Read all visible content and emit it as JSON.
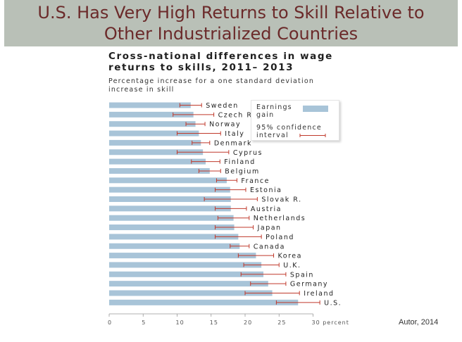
{
  "slide": {
    "title": "U.S. Has Very High Returns to Skill Relative to Other Industrialized Countries",
    "credit": "Autor, 2014"
  },
  "colors": {
    "title_band": "#b9c0b7",
    "title_text": "#6b2a2a",
    "bar": "#a8c4d8",
    "ci": "#c0392b"
  },
  "chart_data": {
    "type": "bar",
    "orientation": "horizontal",
    "title": "Cross-national differences in wage returns to skills, 2011– 2013",
    "subtitle": "Percentage increase for a one standard deviation increase in skill",
    "xlabel": "",
    "ylabel": "",
    "xlim": [
      0,
      30
    ],
    "x_ticks": [
      0,
      5,
      10,
      15,
      20,
      25,
      30
    ],
    "x_tick_labels": [
      "0",
      "5",
      "10",
      "15",
      "20",
      "25",
      "30 percent"
    ],
    "grid": false,
    "legend_position": "top-right",
    "legend": {
      "bar_label": "Earnings gain",
      "ci_label": "95% confidence interval"
    },
    "categories": [
      "Sweden",
      "Czech R.",
      "Norway",
      "Italy",
      "Denmark",
      "Cyprus",
      "Finland",
      "Belgium",
      "France",
      "Estonia",
      "Slovak R.",
      "Austria",
      "Netherlands",
      "Japan",
      "Poland",
      "Canada",
      "Korea",
      "U.K.",
      "Spain",
      "Germany",
      "Ireland",
      "U.S."
    ],
    "series": [
      {
        "values": [
          12.0,
          12.4,
          12.7,
          13.2,
          13.5,
          13.8,
          14.2,
          14.8,
          17.3,
          17.8,
          17.9,
          17.9,
          18.3,
          18.4,
          19.0,
          19.2,
          21.6,
          22.4,
          22.7,
          23.4,
          24.0,
          27.8
        ],
        "ci_low": [
          10.4,
          9.4,
          11.3,
          10.0,
          12.2,
          10.0,
          12.1,
          13.2,
          15.8,
          15.6,
          14.0,
          15.6,
          16.0,
          15.6,
          15.6,
          17.8,
          19.0,
          19.8,
          19.4,
          20.8,
          20.0,
          24.6
        ],
        "ci_high": [
          13.6,
          15.4,
          14.1,
          16.4,
          14.8,
          17.6,
          16.3,
          16.4,
          18.8,
          20.1,
          21.8,
          20.2,
          20.6,
          21.2,
          22.4,
          20.6,
          24.2,
          25.0,
          26.0,
          26.0,
          28.0,
          31.0
        ]
      }
    ]
  }
}
